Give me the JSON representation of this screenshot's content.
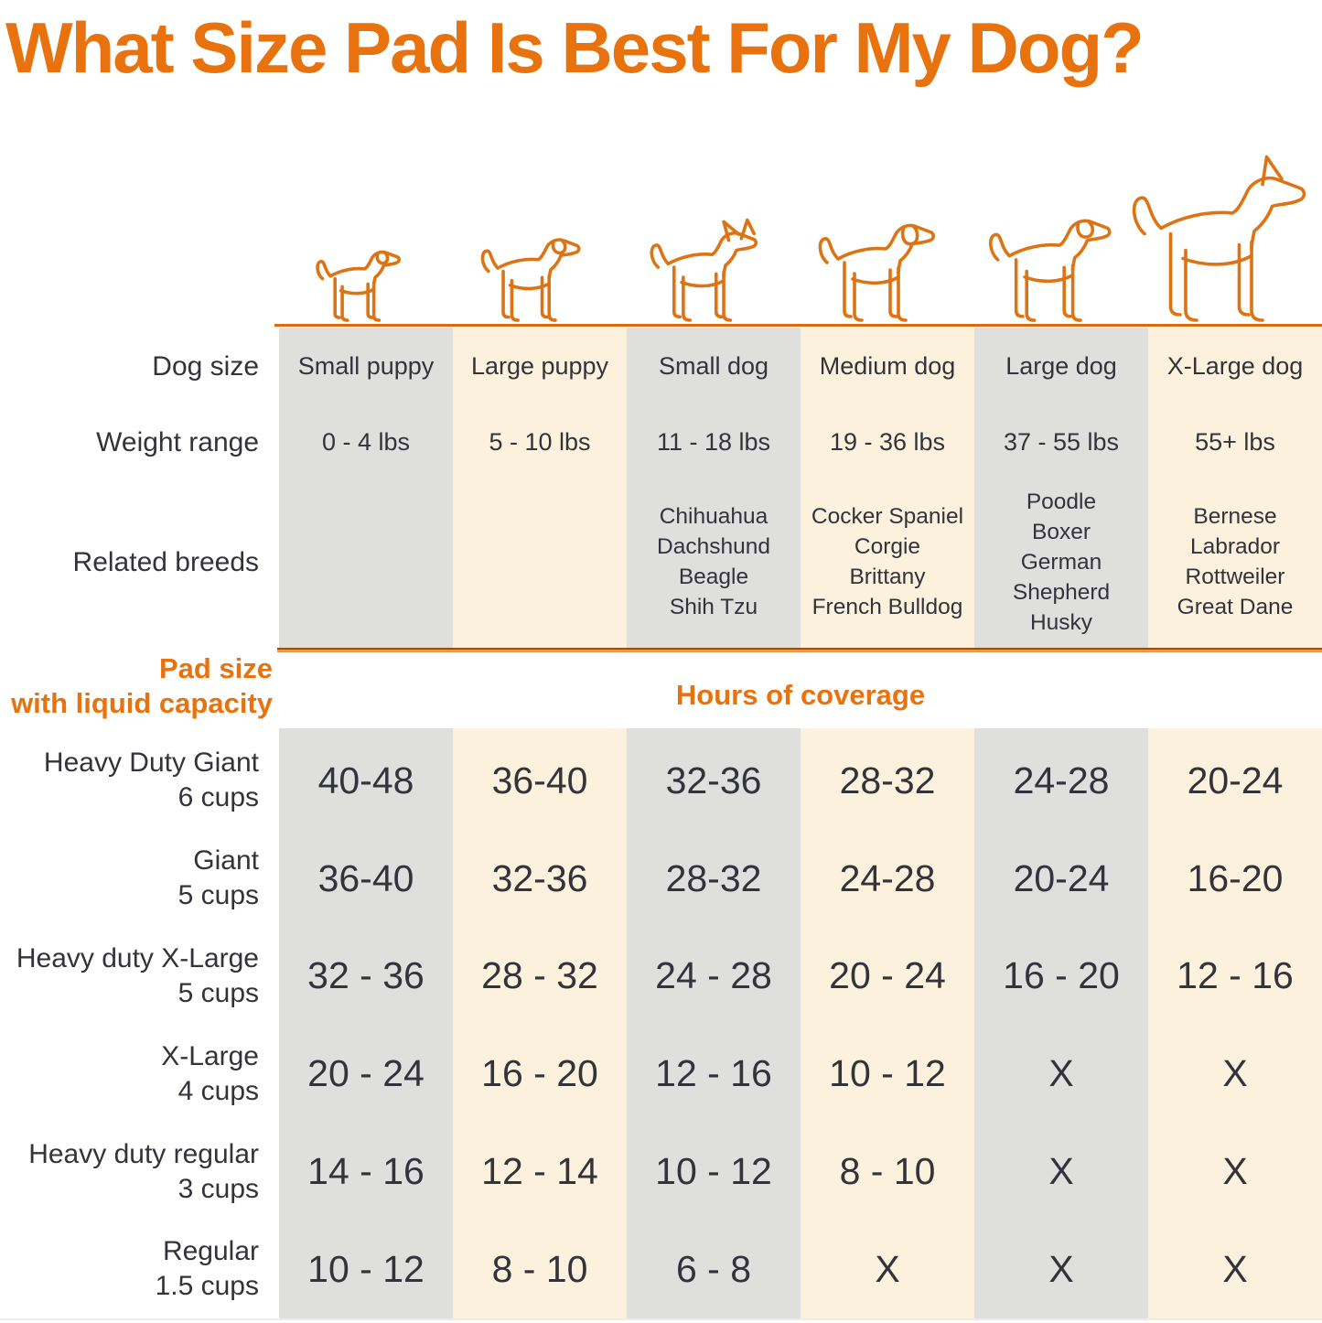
{
  "title": "What Size Pad Is Best For My Dog?",
  "colors": {
    "accent_orange": "#E8730E",
    "dog_outline": "#DE7313",
    "divider_dark": "#9B4E0E",
    "divider_light": "#E89A4C",
    "column_gray": "#DFDFDD",
    "column_cream": "#FCF1DC",
    "text_dark": "#33333B"
  },
  "table": {
    "row_labels": {
      "dog_size": "Dog size",
      "weight_range": "Weight range",
      "related_breeds": "Related breeds"
    },
    "columns": [
      {
        "dog_size": "Small puppy",
        "weight": "0 - 4 lbs",
        "breeds": "",
        "icon": "small-puppy-icon"
      },
      {
        "dog_size": "Large puppy",
        "weight": "5 - 10 lbs",
        "breeds": "",
        "icon": "large-puppy-icon"
      },
      {
        "dog_size": "Small dog",
        "weight": "11 - 18 lbs",
        "breeds": "Chihuahua\nDachshund\nBeagle\nShih Tzu",
        "icon": "small-dog-icon"
      },
      {
        "dog_size": "Medium dog",
        "weight": "19 - 36 lbs",
        "breeds": "Cocker Spaniel\nCorgie\nBrittany\nFrench Bulldog",
        "icon": "medium-dog-icon"
      },
      {
        "dog_size": "Large dog",
        "weight": "37 - 55 lbs",
        "breeds": "Poodle\nBoxer\nGerman\nShepherd\nHusky",
        "icon": "large-dog-icon"
      },
      {
        "dog_size": "X-Large dog",
        "weight": "55+ lbs",
        "breeds": "Bernese\nLabrador\nRottweiler\nGreat Dane",
        "icon": "x-large-dog-icon"
      }
    ]
  },
  "pad_section": {
    "header_left": "Pad size\nwith liquid capacity",
    "header_center": "Hours of coverage",
    "rows": [
      {
        "name": "Heavy Duty Giant",
        "capacity": "6 cups",
        "values": [
          "40-48",
          "36-40",
          "32-36",
          "28-32",
          "24-28",
          "20-24"
        ]
      },
      {
        "name": "Giant",
        "capacity": "5 cups",
        "values": [
          "36-40",
          "32-36",
          "28-32",
          "24-28",
          "20-24",
          "16-20"
        ]
      },
      {
        "name": "Heavy duty X-Large",
        "capacity": "5 cups",
        "values": [
          "32 - 36",
          "28 - 32",
          "24 - 28",
          "20 - 24",
          "16 - 20",
          "12 - 16"
        ]
      },
      {
        "name": "X-Large",
        "capacity": "4 cups",
        "values": [
          "20 - 24",
          "16 - 20",
          "12 - 16",
          "10 - 12",
          "X",
          "X"
        ]
      },
      {
        "name": "Heavy duty regular",
        "capacity": "3 cups",
        "values": [
          "14 - 16",
          "12 - 14",
          "10 - 12",
          "8 - 10",
          "X",
          "X"
        ]
      },
      {
        "name": "Regular",
        "capacity": "1.5 cups",
        "values": [
          "10 - 12",
          "8 - 10",
          "6 - 8",
          "X",
          "X",
          "X"
        ]
      }
    ]
  },
  "chart_data": {
    "type": "table",
    "title": "What Size Pad Is Best For My Dog?",
    "columns": [
      "Small puppy",
      "Large puppy",
      "Small dog",
      "Medium dog",
      "Large dog",
      "X-Large dog"
    ],
    "weight_ranges": [
      "0 - 4 lbs",
      "5 - 10 lbs",
      "11 - 18 lbs",
      "19 - 36 lbs",
      "37 - 55 lbs",
      "55+ lbs"
    ],
    "related_breeds": [
      [],
      [],
      [
        "Chihuahua",
        "Dachshund",
        "Beagle",
        "Shih Tzu"
      ],
      [
        "Cocker Spaniel",
        "Corgie",
        "Brittany",
        "French Bulldog"
      ],
      [
        "Poodle",
        "Boxer",
        "German Shepherd",
        "Husky"
      ],
      [
        "Bernese",
        "Labrador",
        "Rottweiler",
        "Great Dane"
      ]
    ],
    "value_unit": "Hours of coverage",
    "rows": [
      {
        "pad": "Heavy Duty Giant 6 cups",
        "hours": [
          "40-48",
          "36-40",
          "32-36",
          "28-32",
          "24-28",
          "20-24"
        ]
      },
      {
        "pad": "Giant 5 cups",
        "hours": [
          "36-40",
          "32-36",
          "28-32",
          "24-28",
          "20-24",
          "16-20"
        ]
      },
      {
        "pad": "Heavy duty X-Large 5 cups",
        "hours": [
          "32 - 36",
          "28 - 32",
          "24 - 28",
          "20 - 24",
          "16 - 20",
          "12 - 16"
        ]
      },
      {
        "pad": "X-Large 4 cups",
        "hours": [
          "20 - 24",
          "16 - 20",
          "12 - 16",
          "10 - 12",
          "X",
          "X"
        ]
      },
      {
        "pad": "Heavy duty regular 3 cups",
        "hours": [
          "14 - 16",
          "12 - 14",
          "10 - 12",
          "8 - 10",
          "X",
          "X"
        ]
      },
      {
        "pad": "Regular 1.5 cups",
        "hours": [
          "10 - 12",
          "8 - 10",
          "6 - 8",
          "X",
          "X",
          "X"
        ]
      }
    ]
  }
}
